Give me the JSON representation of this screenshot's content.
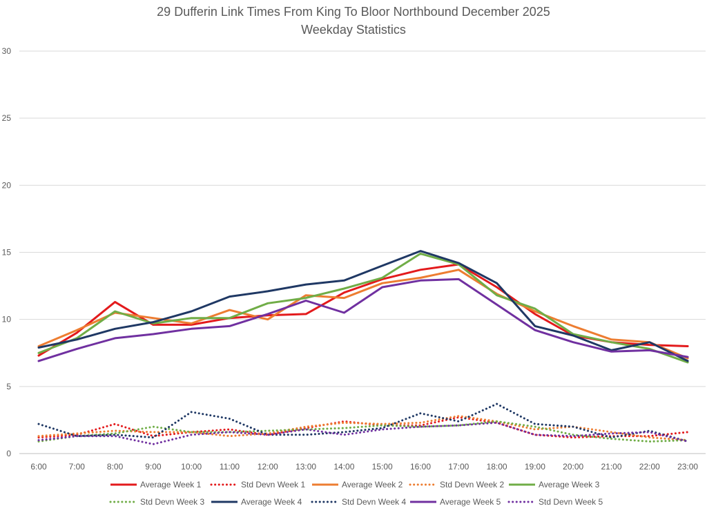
{
  "chart_data": {
    "type": "line",
    "title": "29 Dufferin Link Times From King To Bloor Northbound December 2025",
    "subtitle": "Weekday Statistics",
    "xlabel": "",
    "ylabel": "",
    "categories": [
      "6:00",
      "7:00",
      "8:00",
      "9:00",
      "10:00",
      "11:00",
      "12:00",
      "13:00",
      "14:00",
      "15:00",
      "16:00",
      "17:00",
      "18:00",
      "19:00",
      "20:00",
      "21:00",
      "22:00",
      "23:00"
    ],
    "ylim": [
      0,
      30
    ],
    "yticks": [
      0,
      5,
      10,
      15,
      20,
      25,
      30
    ],
    "grid": "horizontal",
    "legend_position": "bottom",
    "series": [
      {
        "name": "Average Week 1",
        "color": "#e31a1c",
        "style": "solid",
        "values": [
          7.3,
          9.0,
          11.3,
          9.6,
          9.6,
          10.1,
          10.3,
          10.4,
          12.0,
          13.0,
          13.7,
          14.1,
          12.4,
          10.4,
          8.8,
          8.3,
          8.1,
          8.0
        ]
      },
      {
        "name": "Std Devn Week 1",
        "color": "#e31a1c",
        "style": "dotted",
        "values": [
          1.2,
          1.4,
          2.2,
          1.3,
          1.6,
          1.8,
          1.4,
          1.9,
          2.4,
          2.1,
          2.1,
          2.7,
          2.3,
          1.4,
          1.2,
          1.3,
          1.3,
          1.6
        ]
      },
      {
        "name": "Average Week 2",
        "color": "#ed7d31",
        "style": "solid",
        "values": [
          8.0,
          9.2,
          10.5,
          10.1,
          9.7,
          10.7,
          10.0,
          11.8,
          11.6,
          12.7,
          13.1,
          13.7,
          11.9,
          10.6,
          9.5,
          8.5,
          8.3,
          7.1
        ]
      },
      {
        "name": "Std Devn Week 2",
        "color": "#ed7d31",
        "style": "dotted",
        "values": [
          1.3,
          1.5,
          1.7,
          1.6,
          1.6,
          1.3,
          1.5,
          2.0,
          2.3,
          2.2,
          2.3,
          2.8,
          2.4,
          1.8,
          2.0,
          1.6,
          1.2,
          1.0
        ]
      },
      {
        "name": "Average Week 3",
        "color": "#70ad47",
        "style": "solid",
        "values": [
          7.5,
          8.6,
          10.6,
          9.7,
          10.1,
          10.1,
          11.2,
          11.6,
          12.3,
          13.1,
          14.9,
          14.1,
          11.8,
          10.8,
          8.9,
          8.3,
          7.8,
          6.8
        ]
      },
      {
        "name": "Std Devn Week 3",
        "color": "#70ad47",
        "style": "dotted",
        "values": [
          0.9,
          1.3,
          1.5,
          2.0,
          1.6,
          1.6,
          1.7,
          1.8,
          1.9,
          2.1,
          2.0,
          2.1,
          2.4,
          2.0,
          1.4,
          1.1,
          0.9,
          1.0
        ]
      },
      {
        "name": "Average Week 4",
        "color": "#1f3864",
        "style": "solid",
        "values": [
          7.9,
          8.5,
          9.3,
          9.8,
          10.6,
          11.7,
          12.1,
          12.6,
          12.9,
          14.0,
          15.1,
          14.2,
          12.7,
          9.5,
          8.8,
          7.7,
          8.3,
          6.9
        ]
      },
      {
        "name": "Std Devn Week 4",
        "color": "#1f3864",
        "style": "dotted",
        "values": [
          2.2,
          1.3,
          1.4,
          1.2,
          3.1,
          2.6,
          1.4,
          1.4,
          1.6,
          1.9,
          3.0,
          2.4,
          3.7,
          2.2,
          2.0,
          1.2,
          1.7,
          0.9
        ]
      },
      {
        "name": "Average Week 5",
        "color": "#7030a0",
        "style": "solid",
        "values": [
          6.9,
          7.8,
          8.6,
          8.9,
          9.3,
          9.5,
          10.4,
          11.4,
          10.5,
          12.4,
          12.9,
          13.0,
          11.1,
          9.2,
          8.3,
          7.6,
          7.7,
          7.2
        ]
      },
      {
        "name": "Std Devn Week 5",
        "color": "#7030a0",
        "style": "dotted",
        "values": [
          1.0,
          1.3,
          1.3,
          0.7,
          1.4,
          1.6,
          1.4,
          1.8,
          1.4,
          1.8,
          2.0,
          2.1,
          2.3,
          1.4,
          1.3,
          1.5,
          1.6,
          0.9
        ]
      }
    ]
  }
}
